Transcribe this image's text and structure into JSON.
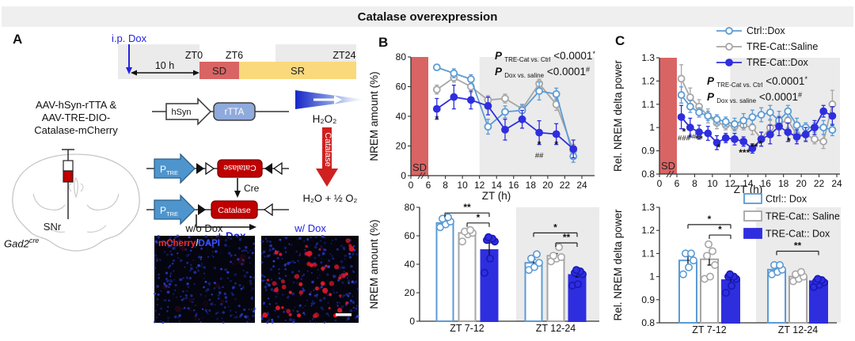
{
  "title": "Catalase overexpression",
  "panel_a": {
    "label": "A",
    "timeline": {
      "ip_dox": "i.p. Dox",
      "duration": "10 h",
      "zt0": "ZT0",
      "zt6": "ZT6",
      "zt24": "ZT24",
      "sd": "SD",
      "sr": "SR"
    },
    "aav": {
      "line1": "AAV-hSyn-rTTA &",
      "line2": "AAV-TRE-DIO-",
      "line3": "Catalase-mCherry"
    },
    "brain": {
      "region": "SNr",
      "genotype": "Gad2",
      "genotype_sup": "cre"
    },
    "construct": {
      "hsyn": "hSyn",
      "rtta": "rTTA",
      "p": "P",
      "tre": "TRE",
      "catalase_inverted": "Catalase",
      "catalase": "Catalase",
      "cre": "Cre",
      "plus_dox": "+ Dox"
    },
    "reaction": {
      "substrate": "H₂O₂",
      "enzyme": "Catalase",
      "product": "H₂O + ½ O₂"
    },
    "microscopy": {
      "left_title": "w/o Dox",
      "right_title": "w/ Dox",
      "stain_red": "mCherry",
      "slash": "/",
      "stain_blue": "DAPI"
    }
  },
  "panel_b": {
    "label": "B"
  },
  "panel_c": {
    "label": "C"
  },
  "legend": {
    "line": [
      "Ctrl::Dox",
      "TRE-Cat::Saline",
      "TRE-Cat::Dox"
    ],
    "bar": [
      "Ctrl:: Dox",
      "TRE-Cat:: Saline",
      "TRE-Cat:: Dox"
    ]
  },
  "colors": {
    "ctrl": "#5b9bd5",
    "saline": "#a6a6a6",
    "dox": "#2e2edf",
    "dox_edge": "#1818b8",
    "sd_red": "#d96464",
    "sr_yellow": "#fad97d",
    "dark_gray": "#ebebeb",
    "catalase_red": "#c00000",
    "accent_blue": "#2222e6"
  },
  "chart_data": [
    {
      "id": "b_line",
      "type": "line",
      "xlabel": "ZT (h)",
      "ylabel": "NREM amount (%)",
      "ylim": [
        0,
        80
      ],
      "yticks": [
        0,
        20,
        40,
        60,
        80
      ],
      "xticks": [
        0,
        6,
        8,
        10,
        12,
        14,
        16,
        18,
        20,
        22,
        24
      ],
      "sd_label": "SD",
      "sd_span": [
        0,
        6
      ],
      "dark_span": [
        12,
        24
      ],
      "x": [
        7,
        9,
        11,
        13,
        15,
        17,
        19,
        21,
        23
      ],
      "series": [
        {
          "name": "Ctrl::Dox",
          "style": "ctrl",
          "marker": "open",
          "values": [
            73,
            69,
            65,
            33,
            43,
            44,
            57,
            55,
            13
          ],
          "err": [
            2,
            3,
            3,
            5,
            4,
            4,
            6,
            4,
            4
          ]
        },
        {
          "name": "TRE-Cat::Saline",
          "style": "saline",
          "marker": "open",
          "values": [
            58,
            66,
            60,
            51,
            52,
            45,
            62,
            48,
            17
          ],
          "err": [
            3,
            3,
            4,
            3,
            3,
            3,
            3,
            4,
            4
          ]
        },
        {
          "name": "TRE-Cat::Dox",
          "style": "dox",
          "marker": "filled",
          "values": [
            45,
            53,
            51,
            47,
            31,
            38,
            29,
            28,
            18
          ],
          "err": [
            7,
            8,
            6,
            6,
            7,
            6,
            8,
            7,
            6
          ]
        }
      ],
      "sig": [
        {
          "x": 7,
          "y": 36,
          "t": "*"
        },
        {
          "x": 19,
          "y": 19,
          "t": "*"
        },
        {
          "x": 19,
          "y": 12,
          "t": "##"
        },
        {
          "x": 21,
          "y": 19,
          "t": "*"
        }
      ],
      "pvals": [
        {
          "sym": "P",
          "sub": "TRE-Cat vs. Ctrl",
          "val": "<0.0001",
          "sup": "*"
        },
        {
          "sym": "P",
          "sub": "Dox vs. saline",
          "val": "<0.0001",
          "sup": "#"
        }
      ]
    },
    {
      "id": "b_bar",
      "type": "bar",
      "ylabel": "NREM amount (%)",
      "ylim": [
        0,
        80
      ],
      "yticks": [
        0,
        20,
        40,
        60,
        80
      ],
      "groups": [
        "ZT 7-12",
        "ZT 12-24"
      ],
      "series": [
        {
          "name": "Ctrl:: Dox",
          "style": "ctrl",
          "values": [
            69,
            41
          ],
          "err": [
            1.5,
            2.5
          ],
          "points": [
            [
              66,
              68,
              70,
              72,
              73
            ],
            [
              36,
              38,
              41,
              44,
              47
            ]
          ]
        },
        {
          "name": "TRE-Cat:: Saline",
          "style": "saline",
          "values": [
            62,
            46
          ],
          "err": [
            1.5,
            1.5
          ],
          "points": [
            [
              56,
              61,
              62,
              63,
              64
            ],
            [
              42,
              44,
              45,
              46,
              52
            ]
          ]
        },
        {
          "name": "TRE-Cat:: Dox",
          "style": "dox",
          "values": [
            50,
            32.5
          ],
          "err": [
            5,
            1.5
          ],
          "points": [
            [
              34,
              44,
              56,
              57,
              58,
              59
            ],
            [
              25,
              26,
              33,
              34,
              35,
              36
            ]
          ]
        }
      ],
      "sig": [
        {
          "group": 0,
          "from": 0,
          "to": 2,
          "y": 76,
          "t": "**"
        },
        {
          "group": 0,
          "from": 1,
          "to": 2,
          "y": 69,
          "t": "*"
        },
        {
          "group": 1,
          "from": 0,
          "to": 2,
          "y": 62,
          "t": "*"
        },
        {
          "group": 1,
          "from": 1,
          "to": 2,
          "y": 55,
          "t": "**"
        }
      ]
    },
    {
      "id": "c_line",
      "type": "line",
      "xlabel": "ZT (h)",
      "ylabel": "Rel. NREM delta power",
      "ylim": [
        0.8,
        1.3
      ],
      "yticks": [
        0.8,
        0.9,
        1,
        1.1,
        1.2,
        1.3
      ],
      "ytick_labels": [
        "0.8",
        "0.9",
        "1",
        "1.1",
        "1.2",
        "1.3"
      ],
      "xticks": [
        0,
        6,
        8,
        10,
        12,
        14,
        16,
        18,
        20,
        22,
        24
      ],
      "sd_label": "SD",
      "sd_span": [
        0,
        6
      ],
      "dark_span": [
        12,
        24
      ],
      "x": [
        6.5,
        7.5,
        8.5,
        9.5,
        10.5,
        11.5,
        12.5,
        13.5,
        14.5,
        15.5,
        16.5,
        17.5,
        18.5,
        19.5,
        20.5,
        21.5,
        22.5,
        23.5
      ],
      "series": [
        {
          "name": "Ctrl::Dox",
          "style": "ctrl",
          "marker": "open",
          "values": [
            1.14,
            1.09,
            1.065,
            1.05,
            1.035,
            1.025,
            1.015,
            1.03,
            1.045,
            1.055,
            1.065,
            1.03,
            1.07,
            1.01,
            1.0,
            1.0,
            1.0,
            0.99
          ],
          "err": [
            0.035,
            0.025,
            0.02,
            0.02,
            0.02,
            0.02,
            0.025,
            0.03,
            0.03,
            0.03,
            0.03,
            0.04,
            0.025,
            0.03,
            0.02,
            0.02,
            0.03,
            0.025
          ]
        },
        {
          "name": "TRE-Cat::Saline",
          "style": "saline",
          "marker": "open",
          "values": [
            1.21,
            1.13,
            1.09,
            1.05,
            1.02,
            1.01,
            1.005,
            1.01,
            1.0,
            0.95,
            1.0,
            1.02,
            1.03,
            0.97,
            0.97,
            0.95,
            0.94,
            1.1
          ],
          "err": [
            0.06,
            0.04,
            0.03,
            0.03,
            0.025,
            0.02,
            0.02,
            0.02,
            0.03,
            0.03,
            0.03,
            0.03,
            0.03,
            0.03,
            0.025,
            0.02,
            0.03,
            0.06
          ]
        },
        {
          "name": "TRE-Cat::Dox",
          "style": "dox",
          "marker": "filled",
          "values": [
            1.045,
            1.0,
            0.98,
            0.975,
            0.935,
            0.955,
            0.95,
            0.94,
            0.91,
            0.95,
            0.97,
            1.005,
            0.98,
            0.96,
            0.97,
            1.0,
            1.07,
            1.05
          ],
          "err": [
            0.05,
            0.04,
            0.03,
            0.03,
            0.03,
            0.02,
            0.025,
            0.02,
            0.02,
            0.03,
            0.04,
            0.04,
            0.04,
            0.03,
            0.03,
            0.03,
            0.025,
            0.04
          ]
        }
      ],
      "sig": [
        {
          "x": 6.8,
          "y": 0.968,
          "t": "*"
        },
        {
          "x": 6.8,
          "y": 0.944,
          "t": "###"
        },
        {
          "x": 7.7,
          "y": 0.952,
          "t": "##"
        },
        {
          "x": 8.5,
          "y": 0.938,
          "t": "**"
        },
        {
          "x": 10.7,
          "y": 0.9,
          "t": "*"
        },
        {
          "x": 13.6,
          "y": 0.878,
          "t": "***"
        },
        {
          "x": 14.7,
          "y": 0.902,
          "t": "**"
        },
        {
          "x": 15.4,
          "y": 0.915,
          "t": "*"
        },
        {
          "x": 18.6,
          "y": 0.928,
          "t": "*"
        }
      ],
      "pvals": [
        {
          "sym": "P",
          "sub": "TRE-Cat vs. Ctrl",
          "val": "<0.0001",
          "sup": "*"
        },
        {
          "sym": "P",
          "sub": "Dox vs. saline",
          "val": "<0.0001",
          "sup": "#"
        }
      ]
    },
    {
      "id": "c_bar",
      "type": "bar",
      "ylabel": "Rel. NREM delta power",
      "ylim": [
        0.8,
        1.3
      ],
      "yticks": [
        0.8,
        0.9,
        1,
        1.1,
        1.2,
        1.3
      ],
      "ytick_labels": [
        "0.8",
        "0.9",
        "1",
        "1.1",
        "1.2",
        "1.3"
      ],
      "groups": [
        "ZT 7-12",
        "ZT 12-24"
      ],
      "series": [
        {
          "name": "Ctrl:: Dox",
          "style": "ctrl",
          "values": [
            1.07,
            1.03
          ],
          "err": [
            0.02,
            0.012
          ],
          "points": [
            [
              1.01,
              1.04,
              1.07,
              1.1,
              1.1
            ],
            [
              1.01,
              1.02,
              1.03,
              1.05,
              1.05
            ]
          ]
        },
        {
          "name": "TRE-Cat:: Saline",
          "style": "saline",
          "values": [
            1.075,
            1.0
          ],
          "err": [
            0.025,
            0.01
          ],
          "points": [
            [
              0.99,
              1.0,
              1.05,
              1.09,
              1.11,
              1.14
            ],
            [
              0.98,
              0.99,
              1.0,
              1.01,
              1.02
            ]
          ]
        },
        {
          "name": "TRE-Cat:: Dox",
          "style": "dox",
          "values": [
            0.985,
            0.98
          ],
          "err": [
            0.015,
            0.008
          ],
          "points": [
            [
              0.93,
              0.96,
              0.99,
              1.0,
              1.0,
              1.01
            ],
            [
              0.955,
              0.965,
              0.975,
              0.98,
              0.985,
              0.99
            ]
          ]
        }
      ],
      "sig": [
        {
          "group": 0,
          "from": 0,
          "to": 2,
          "y": 1.225,
          "t": "*"
        },
        {
          "group": 0,
          "from": 1,
          "to": 2,
          "y": 1.18,
          "t": "*"
        },
        {
          "group": 1,
          "from": 0,
          "to": 2,
          "y": 1.11,
          "t": "**"
        }
      ]
    }
  ]
}
